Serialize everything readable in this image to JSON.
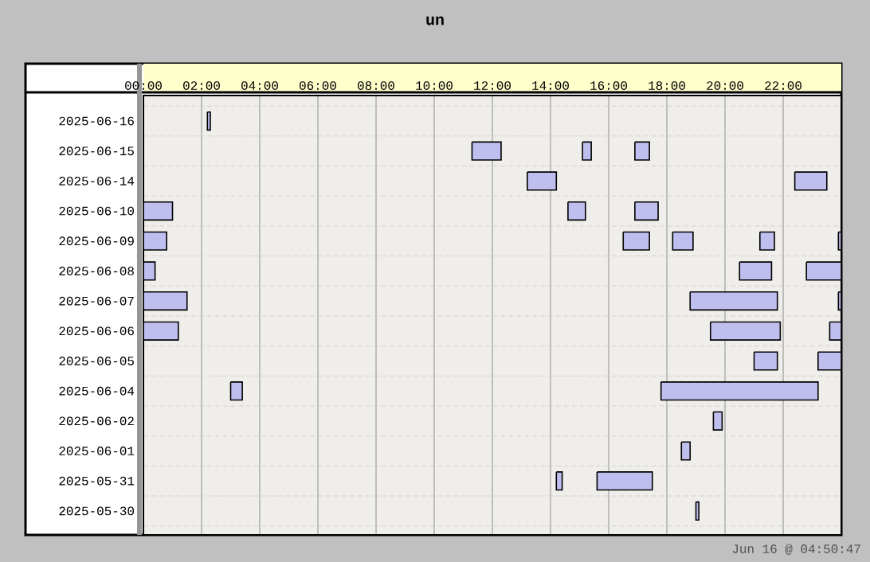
{
  "chart_data": {
    "type": "bar",
    "orientation": "horizontal",
    "title": "un",
    "categories": [
      "2025-06-16",
      "2025-06-15",
      "2025-06-14",
      "2025-06-10",
      "2025-06-09",
      "2025-06-08",
      "2025-06-07",
      "2025-06-06",
      "2025-06-05",
      "2025-06-04",
      "2025-06-02",
      "2025-06-01",
      "2025-05-31",
      "2025-05-30"
    ],
    "xlim": [
      0,
      24
    ],
    "xticks": [
      {
        "value": 0,
        "label": "00:00"
      },
      {
        "value": 2,
        "label": "02:00"
      },
      {
        "value": 4,
        "label": "04:00"
      },
      {
        "value": 6,
        "label": "06:00"
      },
      {
        "value": 8,
        "label": "08:00"
      },
      {
        "value": 10,
        "label": "10:00"
      },
      {
        "value": 12,
        "label": "12:00"
      },
      {
        "value": 14,
        "label": "14:00"
      },
      {
        "value": 16,
        "label": "16:00"
      },
      {
        "value": 18,
        "label": "18:00"
      },
      {
        "value": 20,
        "label": "20:00"
      },
      {
        "value": 22,
        "label": "22:00"
      }
    ],
    "grid": "x",
    "series": [
      {
        "color": "#bfbfef",
        "base": [
          2.2,
          11.3,
          13.2,
          0,
          0,
          0,
          0,
          0,
          21.0,
          3.0,
          19.6,
          18.5,
          14.2,
          19.0
        ],
        "values": [
          0.1,
          1.0,
          1.0,
          1.0,
          0.8,
          0.4,
          1.5,
          1.2,
          0.8,
          0.4,
          0.3,
          0.3,
          0.2,
          0.1
        ]
      },
      {
        "color": "#bfbfef",
        "base": [
          null,
          15.1,
          22.4,
          14.6,
          16.5,
          20.5,
          18.8,
          19.5,
          23.2,
          17.8,
          null,
          null,
          15.6,
          null
        ],
        "values": [
          null,
          0.3,
          1.1,
          0.6,
          0.9,
          1.1,
          3.0,
          2.4,
          0.8,
          5.4,
          null,
          null,
          1.9,
          null
        ]
      },
      {
        "color": "#bfbfef",
        "base": [
          null,
          16.9,
          null,
          16.9,
          18.2,
          22.8,
          23.9,
          23.6,
          null,
          null,
          null,
          null,
          null,
          null
        ],
        "values": [
          null,
          0.5,
          null,
          0.8,
          0.7,
          1.2,
          0.1,
          0.4,
          null,
          null,
          null,
          null,
          null,
          null
        ]
      },
      {
        "color": "#bfbfef",
        "base": [
          null,
          null,
          null,
          null,
          21.2,
          null,
          null,
          null,
          null,
          null,
          null,
          null,
          null,
          null
        ],
        "values": [
          null,
          null,
          null,
          null,
          0.5,
          null,
          null,
          null,
          null,
          null,
          null,
          null,
          null,
          null
        ]
      },
      {
        "color": "#bfbfef",
        "base": [
          null,
          null,
          null,
          null,
          23.9,
          null,
          null,
          null,
          null,
          null,
          null,
          null,
          null,
          null
        ],
        "values": [
          null,
          null,
          null,
          null,
          0.1,
          null,
          null,
          null,
          null,
          null,
          null,
          null,
          null,
          null
        ]
      }
    ],
    "annotations": [
      "Jun 16 @ 04:50:47"
    ]
  }
}
